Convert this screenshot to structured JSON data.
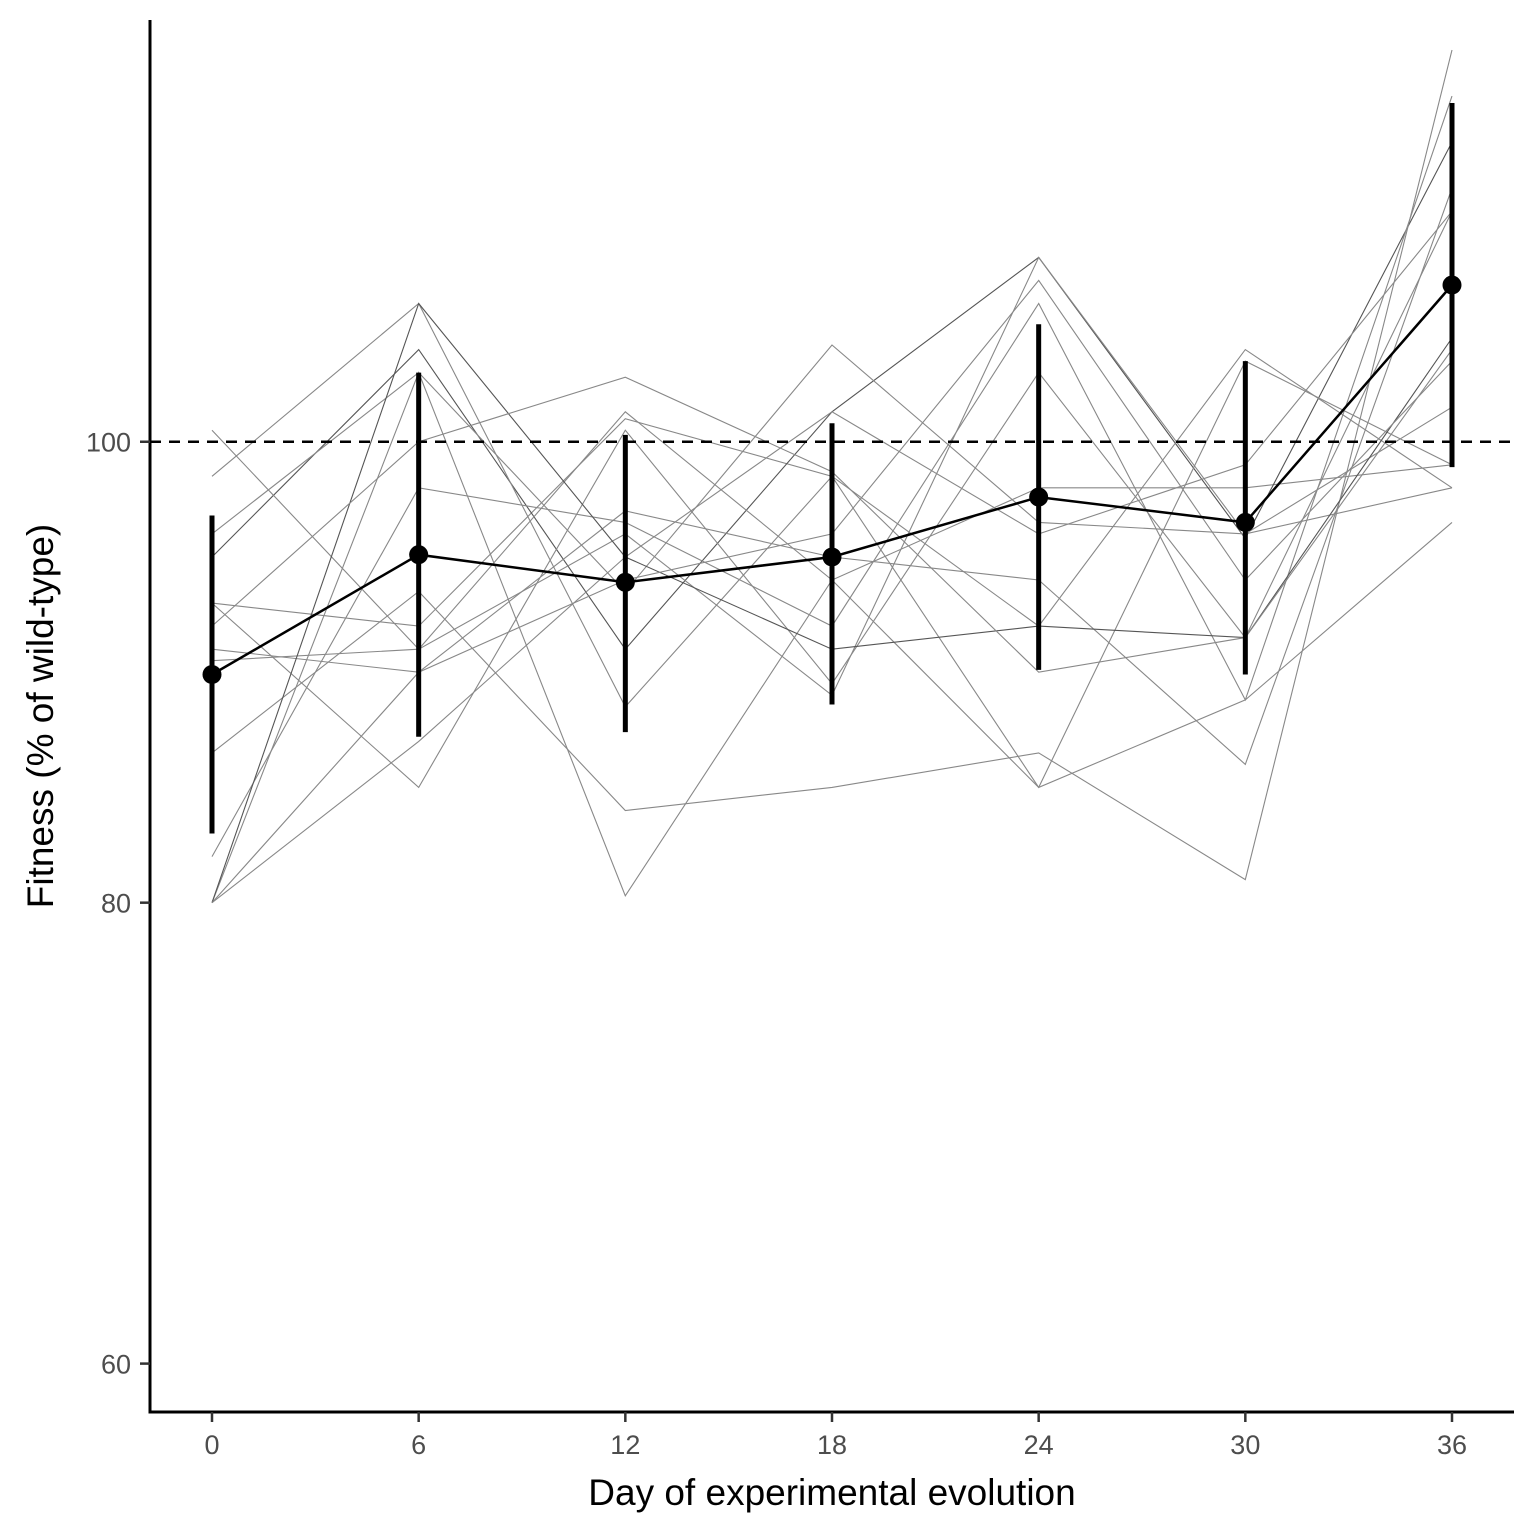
{
  "chart_data": {
    "type": "line",
    "title": "",
    "xlabel": "Day of experimental evolution",
    "ylabel": "Fitness (% of wild-type)",
    "x_ticks": [
      0,
      6,
      12,
      18,
      24,
      30,
      36
    ],
    "x_tick_labels": [
      "0",
      "6",
      "12",
      "18",
      "24",
      "30",
      "36"
    ],
    "y_ticks": [
      60,
      80,
      100
    ],
    "y_tick_labels": [
      "60",
      "80",
      "100"
    ],
    "xlim": [
      -1.8,
      37.8
    ],
    "ylim": [
      57.9,
      118.3
    ],
    "reference_line": {
      "y": 100,
      "style": "dashed"
    },
    "grid": false,
    "legend": "none",
    "x": [
      0,
      6,
      12,
      18,
      24,
      30,
      36
    ],
    "mean": {
      "values": [
        89.9,
        95.1,
        93.9,
        95.0,
        97.6,
        96.5,
        106.8
      ],
      "ci_low": [
        83.0,
        87.2,
        87.4,
        88.6,
        90.1,
        89.9,
        98.9
      ],
      "ci_high": [
        96.8,
        103.0,
        100.3,
        100.8,
        105.1,
        103.5,
        114.7
      ]
    },
    "replicates": [
      {
        "values": [
          80.0,
          103.0,
          80.3,
          94.0,
          98.0,
          98.0,
          99.0
        ],
        "color": "#888888"
      },
      {
        "values": [
          93.0,
          92.0,
          101.0,
          98.5,
          85.0,
          88.8,
          96.5
        ],
        "color": "#888888"
      },
      {
        "values": [
          95.0,
          104.0,
          91.0,
          101.3,
          108.0,
          95.8,
          113.0
        ],
        "color": "#555555"
      },
      {
        "values": [
          82.0,
          98.0,
          96.5,
          92.0,
          106.0,
          88.8,
          115.0
        ],
        "color": "#888888"
      },
      {
        "values": [
          86.5,
          93.5,
          84.0,
          85.0,
          86.5,
          81.0,
          117.0
        ],
        "color": "#888888"
      },
      {
        "values": [
          96.0,
          103.0,
          93.5,
          104.2,
          96.5,
          96.0,
          98.0
        ],
        "color": "#888888"
      },
      {
        "values": [
          90.5,
          91.0,
          101.3,
          94.0,
          85.0,
          103.5,
          99.0
        ],
        "color": "#888888"
      },
      {
        "values": [
          80.0,
          87.0,
          95.0,
          101.3,
          96.0,
          99.0,
          110.0
        ],
        "color": "#888888"
      },
      {
        "values": [
          98.5,
          106.0,
          88.5,
          98.5,
          92.0,
          104.0,
          98.0
        ],
        "color": "#888888"
      },
      {
        "values": [
          91.0,
          90.0,
          97.0,
          95.0,
          94.0,
          86.0,
          111.0
        ],
        "color": "#888888"
      },
      {
        "values": [
          93.0,
          85.0,
          100.5,
          89.5,
          103.0,
          91.5,
          110.0
        ],
        "color": "#888888"
      },
      {
        "values": [
          100.5,
          91.0,
          96.0,
          89.0,
          108.0,
          96.0,
          101.5
        ],
        "color": "#888888"
      },
      {
        "values": [
          80.0,
          106.0,
          95.0,
          91.0,
          92.0,
          91.5,
          104.5
        ],
        "color": "#555555"
      },
      {
        "values": [
          80.0,
          90.0,
          94.0,
          96.0,
          107.0,
          94.0,
          103.5
        ],
        "color": "#888888"
      },
      {
        "values": [
          92.0,
          100.0,
          102.8,
          98.7,
          90.0,
          91.5,
          104.0
        ],
        "color": "#888888"
      }
    ]
  }
}
